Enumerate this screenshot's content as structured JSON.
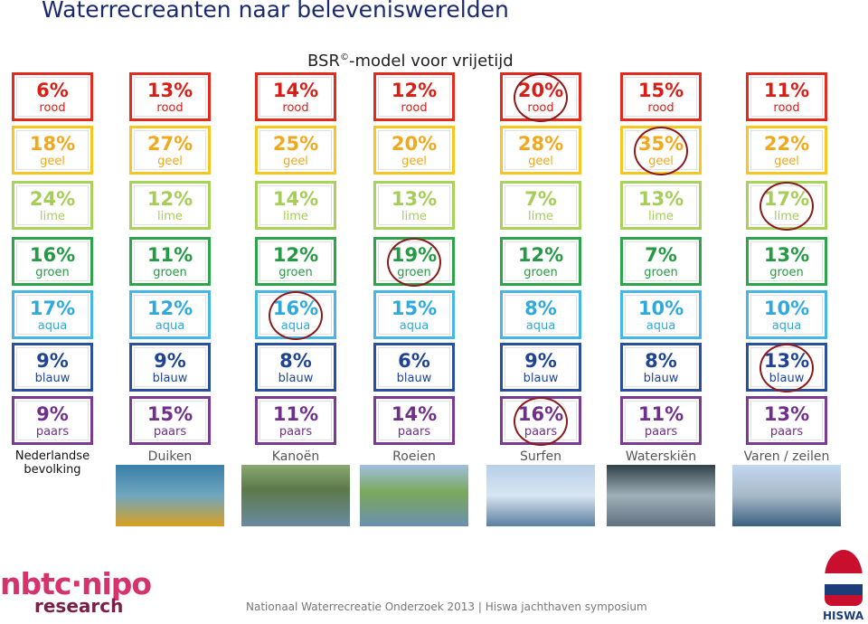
{
  "header": {
    "title": "Waterrecreanten naar belevenis­werelden",
    "subtitle_main": "BSR",
    "subtitle_mark": "©",
    "subtitle_rest": "-model voor vrijetijd"
  },
  "table": {
    "columns": [
      "Nederlandse bevolking",
      "Duiken",
      "Kanoën",
      "Roeien",
      "Surfen",
      "Waterskiën",
      "Varen / zeilen"
    ],
    "rows": [
      {
        "label": "rood",
        "color": "#e32a1f",
        "text_color": "#d81e17",
        "cells": [
          "6%",
          "13%",
          "14%",
          "12%",
          "20%",
          "15%",
          "11%"
        ]
      },
      {
        "label": "geel",
        "color": "#f6c723",
        "text_color": "#f0a81c",
        "cells": [
          "18%",
          "27%",
          "25%",
          "20%",
          "28%",
          "35%",
          "22%"
        ]
      },
      {
        "label": "lime",
        "color": "#a9d25a",
        "text_color": "#a5cd57",
        "cells": [
          "24%",
          "12%",
          "14%",
          "13%",
          "7%",
          "13%",
          "17%"
        ]
      },
      {
        "label": "groen",
        "color": "#2da54b",
        "text_color": "#239a43",
        "cells": [
          "16%",
          "11%",
          "12%",
          "19%",
          "12%",
          "7%",
          "13%"
        ]
      },
      {
        "label": "aqua",
        "color": "#45b7e6",
        "text_color": "#2fa9dc",
        "cells": [
          "17%",
          "12%",
          "16%",
          "15%",
          "8%",
          "10%",
          "10%"
        ]
      },
      {
        "label": "blauw",
        "color": "#2a4f9f",
        "text_color": "#1f4494",
        "cells": [
          "9%",
          "9%",
          "8%",
          "6%",
          "9%",
          "8%",
          "13%"
        ]
      },
      {
        "label": "paars",
        "color": "#7a3b92",
        "text_color": "#6f2f8a",
        "cells": [
          "9%",
          "15%",
          "11%",
          "14%",
          "16%",
          "11%",
          "13%"
        ]
      }
    ]
  },
  "footer": {
    "logo_top": "nbtc·nipo",
    "logo_bottom": "research",
    "text": "Nationaal Waterrecreatie Onderzoek 2013 | Hiswa jachthaven symposium",
    "brand": "HISWA"
  }
}
